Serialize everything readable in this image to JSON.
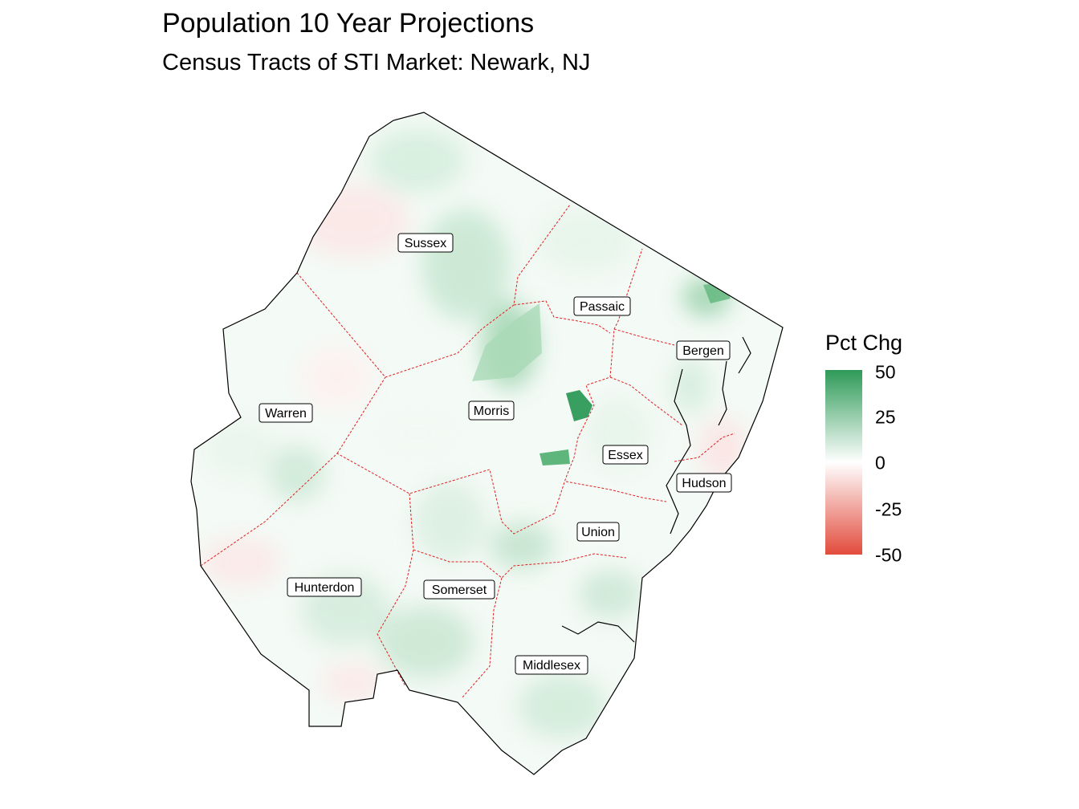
{
  "title": "Population 10 Year Projections",
  "subtitle": "Census Tracts of STI Market: Newark, NJ",
  "legend": {
    "title": "Pct Chg",
    "ticks": [
      "50",
      "25",
      "0",
      "-25",
      "-50"
    ],
    "tick_values": [
      50,
      25,
      0,
      -25,
      -50
    ],
    "range": [
      -50,
      50
    ],
    "colors": {
      "high": "#2e9a57",
      "mid": "#ffffff",
      "low": "#e24b3c"
    }
  },
  "map": {
    "counties": [
      "Sussex",
      "Passaic",
      "Bergen",
      "Warren",
      "Morris",
      "Essex",
      "Hudson",
      "Union",
      "Hunterdon",
      "Somerset",
      "Middlesex"
    ],
    "colors": {
      "outline": "#000000",
      "county_border": "#e02020"
    }
  }
}
